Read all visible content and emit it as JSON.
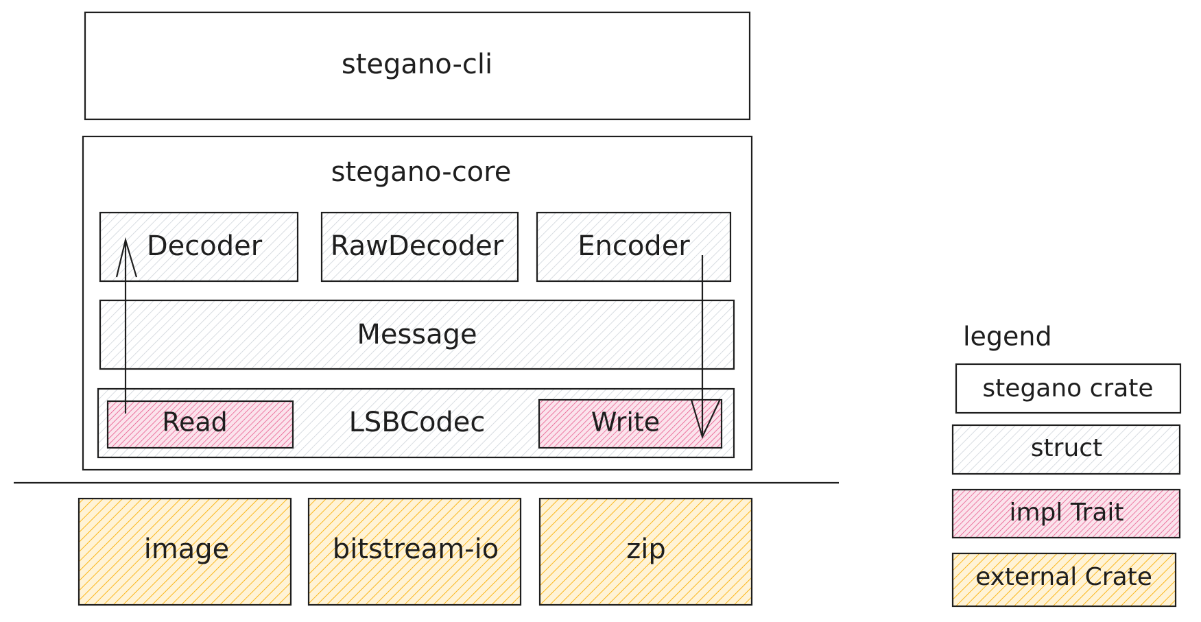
{
  "colors": {
    "stroke": "#1e1e1e",
    "struct_hatch": "#ced4da",
    "trait_hatch": "#e64980",
    "trait_fill": "#fbe3ec",
    "external_hatch": "#fab005",
    "external_fill": "#fff3d6"
  },
  "diagram": {
    "cli": {
      "label": "stegano-cli"
    },
    "core": {
      "label": "stegano-core",
      "decoder": "Decoder",
      "raw_decoder": "RawDecoder",
      "encoder": "Encoder",
      "message": "Message",
      "codec": "LSBCodec",
      "read": "Read",
      "write": "Write"
    },
    "external": {
      "image": "image",
      "bitstream": "bitstream-io",
      "zip": "zip"
    }
  },
  "legend": {
    "title": "legend",
    "stegano_crate": "stegano crate",
    "struct": "struct",
    "impl_trait": "impl Trait",
    "external_crate": "external Crate"
  }
}
